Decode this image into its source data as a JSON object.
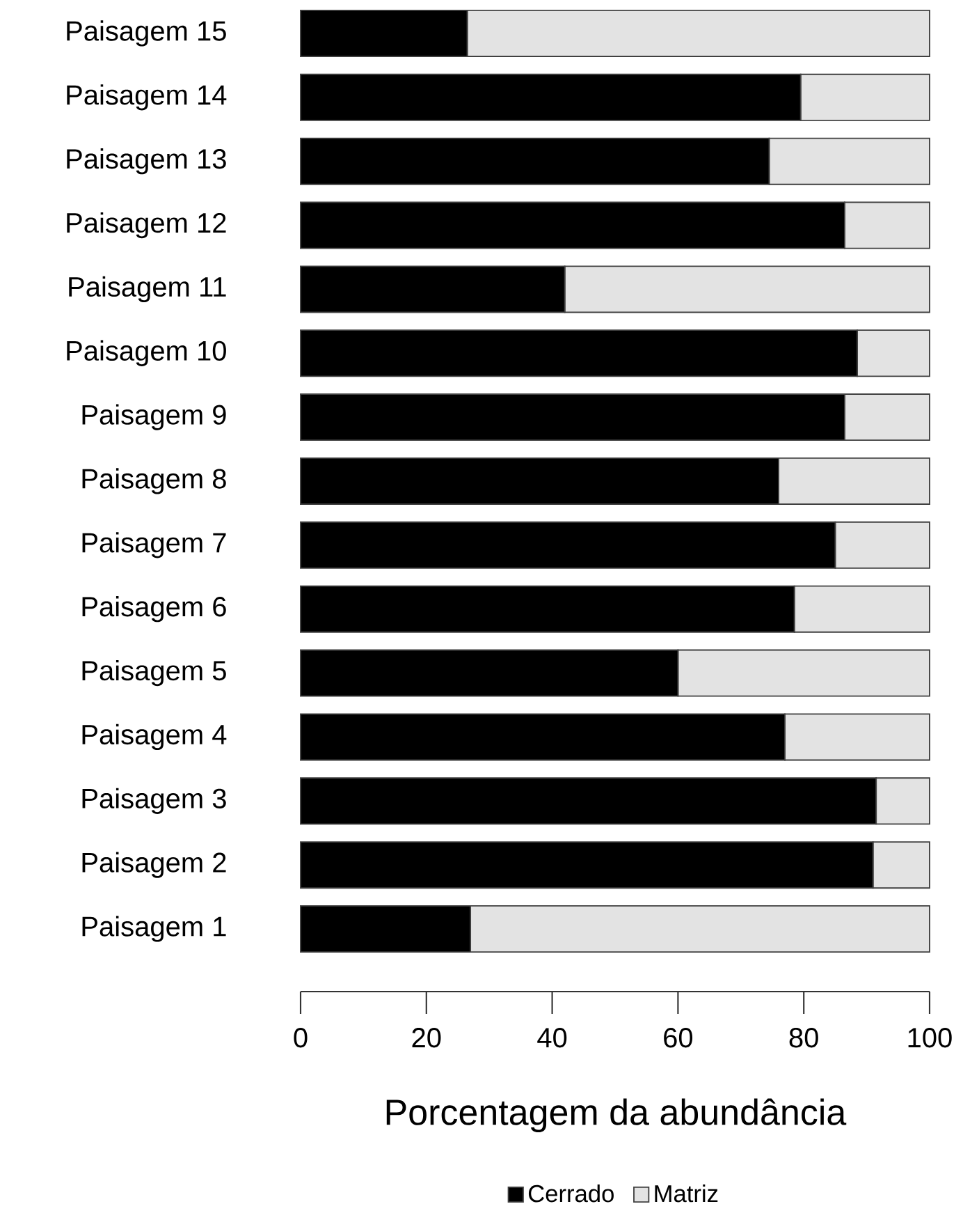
{
  "chart_data": {
    "type": "bar",
    "orientation": "horizontal",
    "stacked": true,
    "xlabel": "Porcentagem da abundância",
    "categories": [
      "Paisagem 15",
      "Paisagem 14",
      "Paisagem 13",
      "Paisagem 12",
      "Paisagem 11",
      "Paisagem 10",
      "Paisagem 9",
      "Paisagem 8",
      "Paisagem 7",
      "Paisagem 6",
      "Paisagem 5",
      "Paisagem 4",
      "Paisagem 3",
      "Paisagem 2",
      "Paisagem 1"
    ],
    "series": [
      {
        "name": "Cerrado",
        "color": "#000000",
        "values": [
          26.5,
          79.5,
          74.5,
          86.5,
          42,
          88.5,
          86.5,
          76,
          85,
          78.5,
          60,
          77,
          91.5,
          91,
          27
        ]
      },
      {
        "name": "Matriz",
        "color": "#e3e3e3",
        "values": [
          73.5,
          20.5,
          25.5,
          13.5,
          58,
          11.5,
          13.5,
          24,
          15,
          21.5,
          40,
          23,
          8.5,
          9,
          73
        ]
      }
    ],
    "xlim": [
      0,
      100
    ],
    "xticks": [
      0,
      20,
      40,
      60,
      80,
      100
    ],
    "legend": "bottom"
  }
}
